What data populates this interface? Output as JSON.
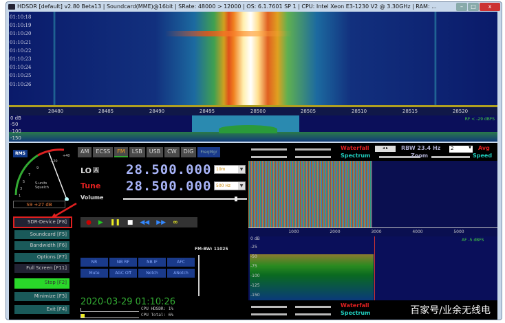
{
  "title": "HDSDR  [default]  v2.80 Beta13  |  Soundcard(MME)@16bit  |  SRate: 48000 > 12000  |  OS: 6.1.7601 SP 1  |  CPU: Intel Xeon E3-1230 V2 @ 3.30GHz  |  RAM: ...",
  "window_buttons": {
    "minimize": "–",
    "maximize": "□",
    "close": "x"
  },
  "waterfall": {
    "times": [
      "01:10:18",
      "01:10:19",
      "01:10:20",
      "01:10:21",
      "01:10:22",
      "01:10:23",
      "01:10:24",
      "01:10:25",
      "01:10:26"
    ]
  },
  "freq_scale": [
    "28480",
    "28485",
    "28490",
    "28495",
    "28500",
    "28505",
    "28510",
    "28515",
    "28520"
  ],
  "rf_spectrum": {
    "labels": [
      "0 dB",
      "-50",
      "-100",
      "-150"
    ],
    "level": "RF < -29 dBFS"
  },
  "meter": {
    "rms": "RMS",
    "scale": [
      "1",
      "3",
      "5",
      "7",
      "9",
      "+20",
      "+40"
    ],
    "caption1": "S-units",
    "caption2": "Squelch",
    "value": "S9 +27 dB"
  },
  "modes": [
    "AM",
    "ECSS",
    "FM",
    "LSB",
    "USB",
    "CW",
    "DIG"
  ],
  "active_mode": "FM",
  "freqmgr": "FreqMgr",
  "lo": {
    "label": "LO",
    "badge": "A",
    "value": "28.500.000",
    "band": "10m"
  },
  "tune": {
    "label": "Tune",
    "value": "28.500.000",
    "step": "500 Hz"
  },
  "volume": {
    "label": "Volume",
    "level": 0.9
  },
  "buttons": [
    "SDR-Device [F8]",
    "Soundcard  [F5]",
    "Bandwidth  [F6]",
    "Options  [F7]",
    "Full Screen  [F11]",
    "Stop  [F2]",
    "Minimize  [F3]",
    "Exit  [F4]"
  ],
  "transport": [
    "●",
    "▶",
    "❚❚",
    "■",
    "◀◀",
    "▶▶",
    "∞"
  ],
  "dsp": [
    "NR",
    "NB RF",
    "NB IF",
    "AFC",
    "Mute",
    "AGC Off",
    "Notch",
    "ANotch"
  ],
  "fm_bw": "FM-BW: 11025",
  "datetime": "2020-03-29 01:10:26",
  "cpu": {
    "hdsdr": "CPU HDSDR:  1%",
    "total": "CPU Total:  6%"
  },
  "af_controls": {
    "waterfall": "Waterfall",
    "spectrum": "Spectrum",
    "zoom": "Zoom",
    "speed": "Speed",
    "avg": "Avg",
    "rbw": "RBW 23.4 Hz",
    "avg_value": "2",
    "nav": "◂ ▸"
  },
  "af_scale": [
    "1000",
    "2000",
    "3000",
    "4000",
    "5000"
  ],
  "af_spectrum": {
    "labels": [
      "0 dB",
      "-25",
      "-50",
      "-75",
      "-100",
      "-125",
      "-150"
    ],
    "level": "AF  -5 dBFS"
  },
  "watermark": "百家号/业余无线电",
  "colors": {
    "accent_red": "#e02020",
    "spectrum_cyan": "#20d0c0",
    "freq_digits": "#a8b4f8",
    "stop_green": "#2ad82a"
  }
}
